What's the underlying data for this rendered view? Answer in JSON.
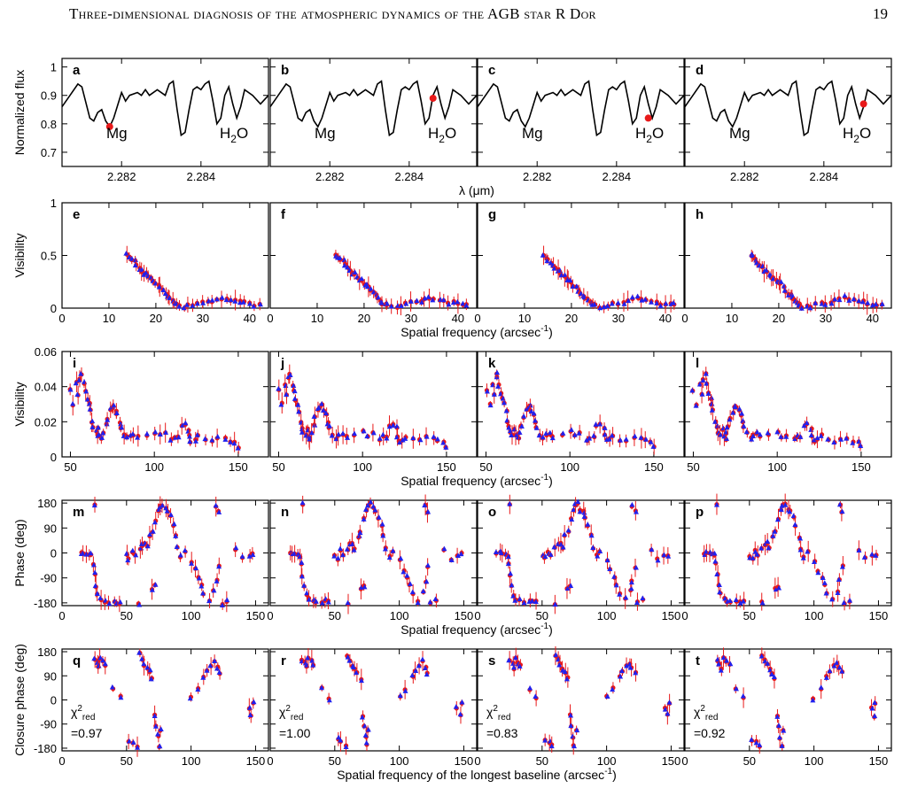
{
  "running_head": "Three-dimensional diagnosis of the atmospheric dynamics of the AGB star R Dor",
  "page_number": "19",
  "colors": {
    "obs": "#e8191a",
    "model": "#2020ee",
    "line": "#000000"
  },
  "panel_letters": [
    [
      "a",
      "b",
      "c",
      "d"
    ],
    [
      "e",
      "f",
      "g",
      "h"
    ],
    [
      "i",
      "j",
      "k",
      "l"
    ],
    [
      "m",
      "n",
      "o",
      "p"
    ],
    [
      "q",
      "r",
      "s",
      "t"
    ]
  ],
  "chart_data": [
    {
      "type": "line",
      "row": "spectrum",
      "ylabel": "Normalized flux",
      "xlabel": "λ (μm)",
      "xlim": [
        2.2805,
        2.2857
      ],
      "ylim": [
        0.65,
        1.03
      ],
      "yticks": [
        0.7,
        0.8,
        0.9,
        1
      ],
      "ytick_labels": [
        "0.7",
        "0.8",
        "0.9",
        "1"
      ],
      "xticks": [
        2.282,
        2.284
      ],
      "xtick_labels": [
        "2.282",
        "2.284"
      ],
      "line_labels": [
        "Mg",
        "H2O"
      ],
      "spectrum": [
        [
          2.2805,
          0.86
        ],
        [
          2.2807,
          0.9
        ],
        [
          2.2809,
          0.94
        ],
        [
          2.281,
          0.93
        ],
        [
          2.2812,
          0.82
        ],
        [
          2.2813,
          0.81
        ],
        [
          2.2814,
          0.84
        ],
        [
          2.2815,
          0.85
        ],
        [
          2.2816,
          0.81
        ],
        [
          2.2817,
          0.79
        ],
        [
          2.2818,
          0.82
        ],
        [
          2.282,
          0.91
        ],
        [
          2.2821,
          0.88
        ],
        [
          2.2822,
          0.9
        ],
        [
          2.2824,
          0.91
        ],
        [
          2.2825,
          0.9
        ],
        [
          2.2826,
          0.92
        ],
        [
          2.2827,
          0.9
        ],
        [
          2.2829,
          0.92
        ],
        [
          2.2831,
          0.9
        ],
        [
          2.2832,
          0.94
        ],
        [
          2.2833,
          0.95
        ],
        [
          2.2834,
          0.85
        ],
        [
          2.2835,
          0.76
        ],
        [
          2.2836,
          0.77
        ],
        [
          2.2837,
          0.85
        ],
        [
          2.2838,
          0.92
        ],
        [
          2.2839,
          0.93
        ],
        [
          2.284,
          0.92
        ],
        [
          2.2841,
          0.94
        ],
        [
          2.2842,
          0.95
        ],
        [
          2.2843,
          0.88
        ],
        [
          2.2844,
          0.8
        ],
        [
          2.2845,
          0.82
        ],
        [
          2.2846,
          0.9
        ],
        [
          2.2847,
          0.93
        ],
        [
          2.2848,
          0.87
        ],
        [
          2.2849,
          0.82
        ],
        [
          2.285,
          0.86
        ],
        [
          2.2851,
          0.92
        ],
        [
          2.2853,
          0.9
        ],
        [
          2.2855,
          0.87
        ],
        [
          2.2857,
          0.9
        ]
      ],
      "marked_points": [
        {
          "panel": "a",
          "wavelength": 2.2817,
          "flux": 0.79
        },
        {
          "panel": "b",
          "wavelength": 2.2846,
          "flux": 0.89
        },
        {
          "panel": "c",
          "wavelength": 2.2848,
          "flux": 0.82
        },
        {
          "panel": "d",
          "wavelength": 2.285,
          "flux": 0.87
        }
      ]
    },
    {
      "type": "scatter",
      "row": "visibility",
      "ylabel": "Visibility",
      "xlabel": "Spatial frequency (arcsec-1)",
      "xlim": [
        0,
        44
      ],
      "ylim": [
        0,
        1
      ],
      "xticks": [
        0,
        10,
        20,
        30,
        40
      ],
      "xtick_labels": [
        "0",
        "10",
        "20",
        "30",
        "40"
      ],
      "yticks": [
        0,
        0.5,
        1
      ],
      "ytick_labels": [
        "0",
        "0.5",
        "1"
      ],
      "points": [
        [
          14,
          0.5
        ],
        [
          14.5,
          0.48
        ],
        [
          15,
          0.46
        ],
        [
          15.5,
          0.44
        ],
        [
          16,
          0.41
        ],
        [
          16.5,
          0.38
        ],
        [
          17,
          0.36
        ],
        [
          17.5,
          0.34
        ],
        [
          18,
          0.32
        ],
        [
          18.5,
          0.3
        ],
        [
          19,
          0.28
        ],
        [
          19.5,
          0.26
        ],
        [
          20,
          0.24
        ],
        [
          20.5,
          0.22
        ],
        [
          21,
          0.2
        ],
        [
          21.5,
          0.17
        ],
        [
          22,
          0.14
        ],
        [
          22.5,
          0.12
        ],
        [
          23,
          0.1
        ],
        [
          23.5,
          0.08
        ],
        [
          24,
          0.05
        ],
        [
          24.5,
          0.03
        ],
        [
          25,
          0.02
        ],
        [
          26,
          0.01
        ],
        [
          27,
          0.02
        ],
        [
          28,
          0.03
        ],
        [
          29,
          0.04
        ],
        [
          30,
          0.05
        ],
        [
          31,
          0.06
        ],
        [
          32,
          0.07
        ],
        [
          33,
          0.08
        ],
        [
          34,
          0.09
        ],
        [
          35,
          0.09
        ],
        [
          36,
          0.08
        ],
        [
          37,
          0.07
        ],
        [
          38,
          0.06
        ],
        [
          39,
          0.05
        ],
        [
          40,
          0.04
        ],
        [
          41,
          0.03
        ],
        [
          42,
          0.03
        ]
      ]
    },
    {
      "type": "scatter",
      "row": "visibility-zoom",
      "ylabel": "Visibility",
      "xlabel": "Spatial frequency (arcsec-1)",
      "xlim": [
        45,
        168
      ],
      "ylim": [
        0,
        0.06
      ],
      "xticks": [
        50,
        100,
        150
      ],
      "xtick_labels": [
        "50",
        "100",
        "150"
      ],
      "yticks": [
        0,
        0.02,
        0.04,
        0.06
      ],
      "ytick_labels": [
        "0",
        "0.02",
        "0.04",
        "0.06"
      ],
      "points": [
        [
          50,
          0.038
        ],
        [
          52,
          0.03
        ],
        [
          54,
          0.042
        ],
        [
          55,
          0.035
        ],
        [
          56,
          0.045
        ],
        [
          57,
          0.047
        ],
        [
          58,
          0.041
        ],
        [
          59,
          0.037
        ],
        [
          60,
          0.033
        ],
        [
          61,
          0.03
        ],
        [
          62,
          0.026
        ],
        [
          63,
          0.02
        ],
        [
          64,
          0.017
        ],
        [
          65,
          0.014
        ],
        [
          66,
          0.012
        ],
        [
          67,
          0.016
        ],
        [
          68,
          0.012
        ],
        [
          69,
          0.01
        ],
        [
          70,
          0.013
        ],
        [
          71,
          0.018
        ],
        [
          72,
          0.022
        ],
        [
          74,
          0.026
        ],
        [
          75,
          0.028
        ],
        [
          76,
          0.029
        ],
        [
          77,
          0.027
        ],
        [
          78,
          0.024
        ],
        [
          79,
          0.02
        ],
        [
          80,
          0.017
        ],
        [
          82,
          0.013
        ],
        [
          84,
          0.011
        ],
        [
          86,
          0.012
        ],
        [
          88,
          0.013
        ],
        [
          90,
          0.012
        ],
        [
          95,
          0.013
        ],
        [
          100,
          0.014
        ],
        [
          103,
          0.012
        ],
        [
          106,
          0.013
        ],
        [
          110,
          0.01
        ],
        [
          112,
          0.011
        ],
        [
          114,
          0.012
        ],
        [
          116,
          0.018
        ],
        [
          118,
          0.019
        ],
        [
          120,
          0.016
        ],
        [
          121,
          0.012
        ],
        [
          122,
          0.009
        ],
        [
          124,
          0.01
        ],
        [
          126,
          0.012
        ],
        [
          130,
          0.01
        ],
        [
          134,
          0.009
        ],
        [
          138,
          0.011
        ],
        [
          142,
          0.01
        ],
        [
          145,
          0.009
        ],
        [
          148,
          0.008
        ],
        [
          150,
          0.006
        ]
      ]
    },
    {
      "type": "scatter",
      "row": "phase",
      "ylabel": "Phase (deg)",
      "xlabel": "Spatial frequency (arcsec-1)",
      "xlim": [
        0,
        160
      ],
      "ylim": [
        -190,
        190
      ],
      "xticks": [
        0,
        50,
        100,
        150
      ],
      "xtick_labels": [
        "0",
        "50",
        "100",
        "150"
      ],
      "yticks": [
        -180,
        -90,
        0,
        90,
        180
      ],
      "ytick_labels": [
        "-180",
        "-90",
        "0",
        "90",
        "180"
      ],
      "points": [
        [
          15,
          0
        ],
        [
          17,
          -2
        ],
        [
          19,
          -3
        ],
        [
          21,
          -5
        ],
        [
          23,
          -10
        ],
        [
          24,
          -40
        ],
        [
          25,
          -80
        ],
        [
          26,
          -120
        ],
        [
          28,
          -150
        ],
        [
          30,
          -165
        ],
        [
          33,
          -172
        ],
        [
          36,
          -175
        ],
        [
          40,
          -175
        ],
        [
          43,
          -176
        ],
        [
          45,
          -178
        ],
        [
          50,
          -10
        ],
        [
          52,
          -20
        ],
        [
          55,
          5
        ],
        [
          57,
          -5
        ],
        [
          60,
          15
        ],
        [
          62,
          30
        ],
        [
          64,
          40
        ],
        [
          66,
          20
        ],
        [
          68,
          60
        ],
        [
          70,
          80
        ],
        [
          72,
          120
        ],
        [
          74,
          150
        ],
        [
          76,
          170
        ],
        [
          78,
          175
        ],
        [
          80,
          160
        ],
        [
          82,
          150
        ],
        [
          84,
          130
        ],
        [
          86,
          100
        ],
        [
          88,
          60
        ],
        [
          90,
          20
        ],
        [
          92,
          -10
        ],
        [
          95,
          0
        ],
        [
          100,
          -30
        ],
        [
          103,
          -60
        ],
        [
          106,
          -90
        ],
        [
          108,
          -120
        ],
        [
          110,
          -150
        ],
        [
          115,
          -170
        ],
        [
          118,
          -140
        ],
        [
          120,
          -100
        ],
        [
          122,
          -50
        ],
        [
          124,
          -180
        ],
        [
          128,
          -170
        ],
        [
          120,
          170
        ],
        [
          122,
          150
        ],
        [
          135,
          10
        ],
        [
          140,
          -20
        ],
        [
          145,
          -10
        ],
        [
          148,
          -5
        ],
        [
          70,
          -130
        ],
        [
          72,
          -120
        ],
        [
          25,
          175
        ],
        [
          60,
          -180
        ]
      ]
    },
    {
      "type": "scatter",
      "row": "closure-phase",
      "ylabel": "Closure phase (deg)",
      "xlabel": "Spatial frequency of the longest baseline (arcsec-1)",
      "xlim": [
        0,
        160
      ],
      "ylim": [
        -190,
        190
      ],
      "xticks": [
        0,
        50,
        100,
        150
      ],
      "xtick_labels": [
        "0",
        "50",
        "100",
        "150"
      ],
      "yticks": [
        -180,
        -90,
        0,
        90,
        180
      ],
      "ytick_labels": [
        "-180",
        "-90",
        "0",
        "90",
        "180"
      ],
      "chi2_label": "χ²red",
      "chi2_values": [
        "=0.97",
        "=1.00",
        "=0.83",
        "=0.92"
      ],
      "points": [
        [
          25,
          150
        ],
        [
          27,
          140
        ],
        [
          28,
          120
        ],
        [
          30,
          160
        ],
        [
          32,
          145
        ],
        [
          34,
          130
        ],
        [
          40,
          40
        ],
        [
          45,
          10
        ],
        [
          52,
          -150
        ],
        [
          55,
          -160
        ],
        [
          58,
          -170
        ],
        [
          60,
          170
        ],
        [
          62,
          150
        ],
        [
          64,
          130
        ],
        [
          66,
          120
        ],
        [
          68,
          100
        ],
        [
          70,
          80
        ],
        [
          72,
          -60
        ],
        [
          73,
          -100
        ],
        [
          74,
          -140
        ],
        [
          75,
          -170
        ],
        [
          76,
          -110
        ],
        [
          100,
          10
        ],
        [
          105,
          40
        ],
        [
          110,
          90
        ],
        [
          112,
          110
        ],
        [
          115,
          130
        ],
        [
          118,
          140
        ],
        [
          120,
          120
        ],
        [
          122,
          100
        ],
        [
          145,
          -30
        ],
        [
          147,
          -60
        ],
        [
          148,
          -10
        ]
      ]
    }
  ]
}
